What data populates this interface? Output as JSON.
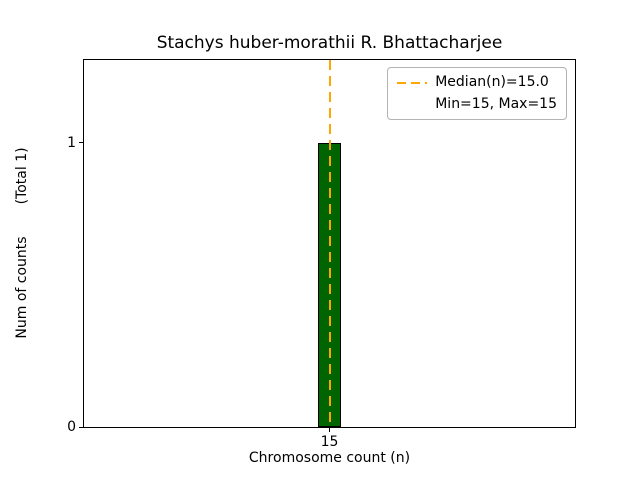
{
  "chart_data": {
    "type": "bar",
    "title": "Stachys huber-morathii R. Bhattacharjee",
    "xlabel": "Chromosome count (n)",
    "ylabel_parts": [
      "Num of counts",
      "(Total 1)"
    ],
    "x": [
      15
    ],
    "values": [
      1
    ],
    "xlim": [
      14.5,
      15.5
    ],
    "ylim": [
      0,
      1.29
    ],
    "xticks": [
      15
    ],
    "yticks": [
      0,
      1
    ],
    "bar_width": 0.045,
    "bar_color": "#006400",
    "bar_edge_color": "#000000",
    "median_line": {
      "x": 15,
      "color": "#FFA500",
      "style": "dashed"
    },
    "stats": {
      "median": 15.0,
      "min": 15,
      "max": 15
    },
    "grid": false,
    "legend": {
      "position": "upper right",
      "entries": [
        {
          "label": "Median(n)=15.0",
          "line": "dashed",
          "color": "#FFA500"
        },
        {
          "label": "Min=15, Max=15",
          "line": "none"
        }
      ]
    }
  }
}
